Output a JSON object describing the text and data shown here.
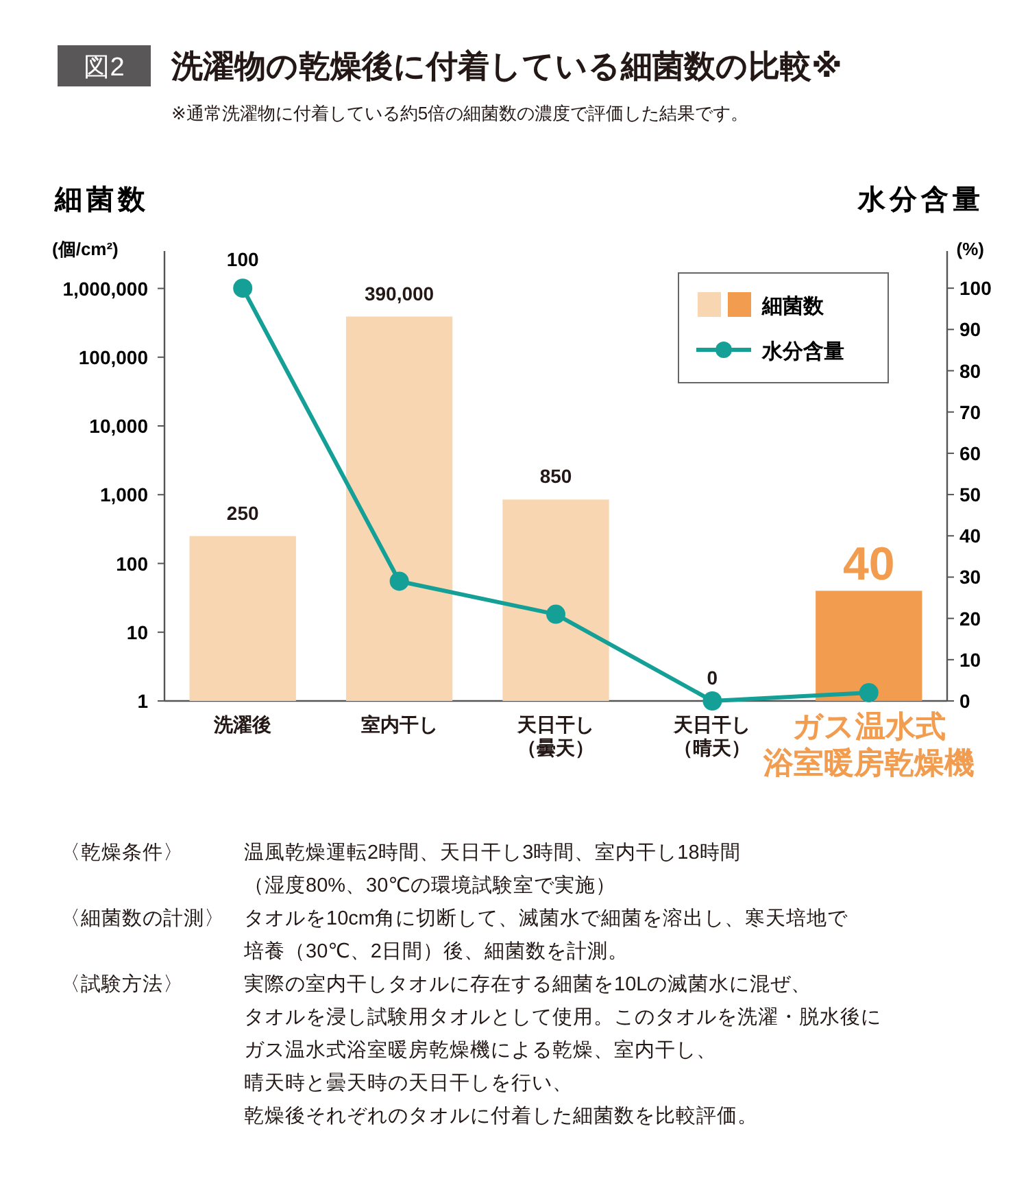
{
  "chart_data": {
    "type": "bar",
    "title": "洗濯物の乾燥後に付着している細菌数の比較※",
    "subtitle": "※通常洗濯物に付着している約5倍の細菌数の濃度で評価した結果です。",
    "ylabel": "細菌数",
    "y2label": "水分含量",
    "categories": [
      "洗濯後",
      "室内干し",
      "天日干し（曇天）",
      "天日干し（晴天）",
      "ガス温水式浴室暖房乾燥機"
    ],
    "series": [
      {
        "name": "細菌数",
        "colors": [
          "#f8d6b2",
          "#f8d6b2",
          "#f8d6b2",
          "#f8d6b2",
          "#f29c50"
        ],
        "values": [
          250,
          390000,
          850,
          null,
          40
        ],
        "value_labels": [
          "250",
          "390,000",
          "850",
          "0",
          "40"
        ]
      },
      {
        "name": "水分含量",
        "type": "line",
        "axis": "y2",
        "color": "#14a096",
        "marker": "circle",
        "values": [
          100,
          29,
          21,
          0,
          2
        ],
        "value_labels": [
          "100",
          null,
          null,
          null,
          null
        ]
      }
    ],
    "log": "y",
    "ylim": [
      1,
      3500000
    ],
    "yticks": [
      1,
      10,
      100,
      {
        "value": 1000,
        "label": "1,000"
      },
      {
        "value": 10000,
        "label": "10,000"
      },
      {
        "value": 100000,
        "label": "100,000"
      },
      {
        "value": 1000000,
        "label": "1,000,000"
      }
    ],
    "y2lim": [
      0,
      109
    ],
    "y2ticks": [
      0,
      10,
      20,
      30,
      40,
      50,
      60,
      70,
      80,
      90,
      100
    ],
    "legend": "top right",
    "annotations": [
      "図2",
      "(個/cm²)",
      "(%)",
      "〈乾燥条件〉",
      "温風乾燥運転2時間、天日干し3時間、室内干し18時間",
      "（湿度80%、30℃の環境試験室で実施）",
      "〈細菌数の計測〉",
      "タオルを10cm角に切断して、滅菌水で細菌を溶出し、寒天培地で",
      "培養（30℃、2日間）後、細菌数を計測。",
      "〈試験方法〉",
      "実際の室内干しタオルに存在する細菌を10Lの滅菌水に混ぜ、",
      "タオルを浸し試験用タオルとして使用。このタオルを洗濯・脱水後に",
      "ガス温水式浴室暖房乾燥機による乾燥、室内干し、",
      "晴天時と曇天時の天日干しを行い、",
      "乾燥後それぞれのタオルに付着した細菌数を比較評価。"
    ]
  }
}
